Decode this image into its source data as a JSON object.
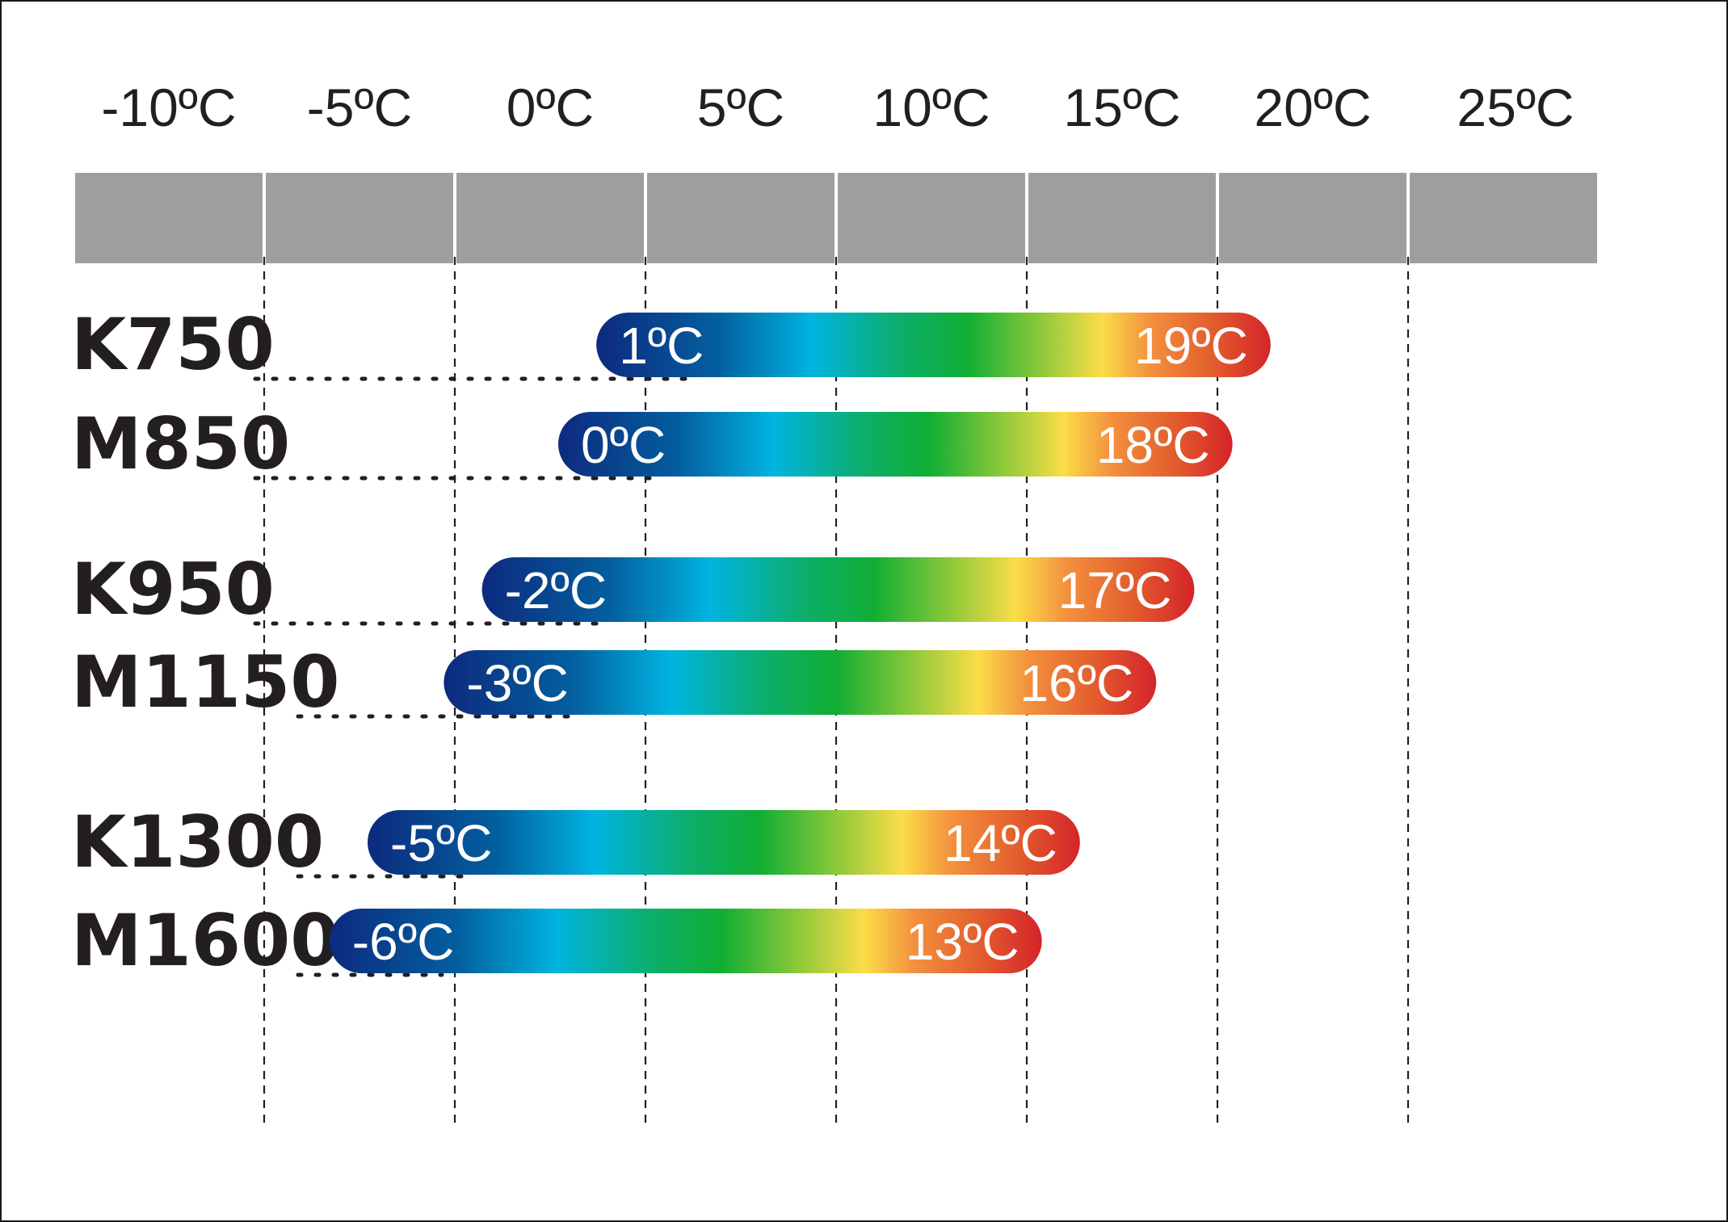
{
  "chart_data": {
    "type": "bar",
    "axis": {
      "ticks": [
        -10,
        -5,
        0,
        5,
        10,
        15,
        20,
        25
      ],
      "tick_labels": [
        "-10ºC",
        "-5ºC",
        "0ºC",
        "5ºC",
        "10ºC",
        "15ºC",
        "20ºC",
        "25ºC"
      ],
      "range": [
        -12.5,
        27.5
      ],
      "band_color": "#9d9e9d",
      "gridlines": "dashed"
    },
    "categories": [
      "K750",
      "M850",
      "K950",
      "M1150",
      "K1300",
      "M1600"
    ],
    "series": [
      {
        "min_values": [
          1,
          0,
          -2,
          -3,
          -5,
          -6
        ],
        "max_values": [
          19,
          18,
          17,
          16,
          14,
          13
        ],
        "min_labels": [
          "1ºC",
          "0ºC",
          "-2ºC",
          "-3ºC",
          "-5ºC",
          "-6ºC"
        ],
        "max_labels": [
          "19ºC",
          "18ºC",
          "17ºC",
          "16ºC",
          "14ºC",
          "13ºC"
        ]
      }
    ],
    "colors": {
      "gradient": [
        "#0d2a7e",
        "#035f9f",
        "#00b4e0",
        "#0cae6c",
        "#10ae34",
        "#8fc93a",
        "#fbdd47",
        "#f3913e",
        "#e35f2d",
        "#d4242a"
      ],
      "text": "#231f20",
      "bar_label": "#ffffff"
    }
  }
}
